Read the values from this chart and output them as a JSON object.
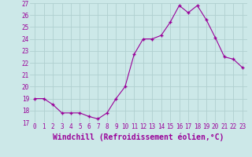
{
  "x": [
    0,
    1,
    2,
    3,
    4,
    5,
    6,
    7,
    8,
    9,
    10,
    11,
    12,
    13,
    14,
    15,
    16,
    17,
    18,
    19,
    20,
    21,
    22,
    23
  ],
  "y": [
    19.0,
    19.0,
    18.5,
    17.8,
    17.8,
    17.8,
    17.5,
    17.3,
    17.8,
    19.0,
    20.0,
    22.7,
    24.0,
    24.0,
    24.3,
    25.4,
    26.8,
    26.2,
    26.8,
    25.6,
    24.1,
    22.5,
    22.3,
    21.6
  ],
  "line_color": "#990099",
  "marker": "+",
  "marker_size": 3,
  "linewidth": 0.8,
  "xlabel": "Windchill (Refroidissement éolien,°C)",
  "xlabel_fontsize": 7,
  "ylabel_ticks": [
    17,
    18,
    19,
    20,
    21,
    22,
    23,
    24,
    25,
    26,
    27
  ],
  "xlim": [
    -0.5,
    23.5
  ],
  "ylim": [
    17,
    27
  ],
  "xticks": [
    0,
    1,
    2,
    3,
    4,
    5,
    6,
    7,
    8,
    9,
    10,
    11,
    12,
    13,
    14,
    15,
    16,
    17,
    18,
    19,
    20,
    21,
    22,
    23
  ],
  "background_color": "#cce8e8",
  "grid_color": "#b0d0d0",
  "tick_fontsize": 5.5,
  "label_color": "#990099",
  "markeredgewidth": 1.0
}
